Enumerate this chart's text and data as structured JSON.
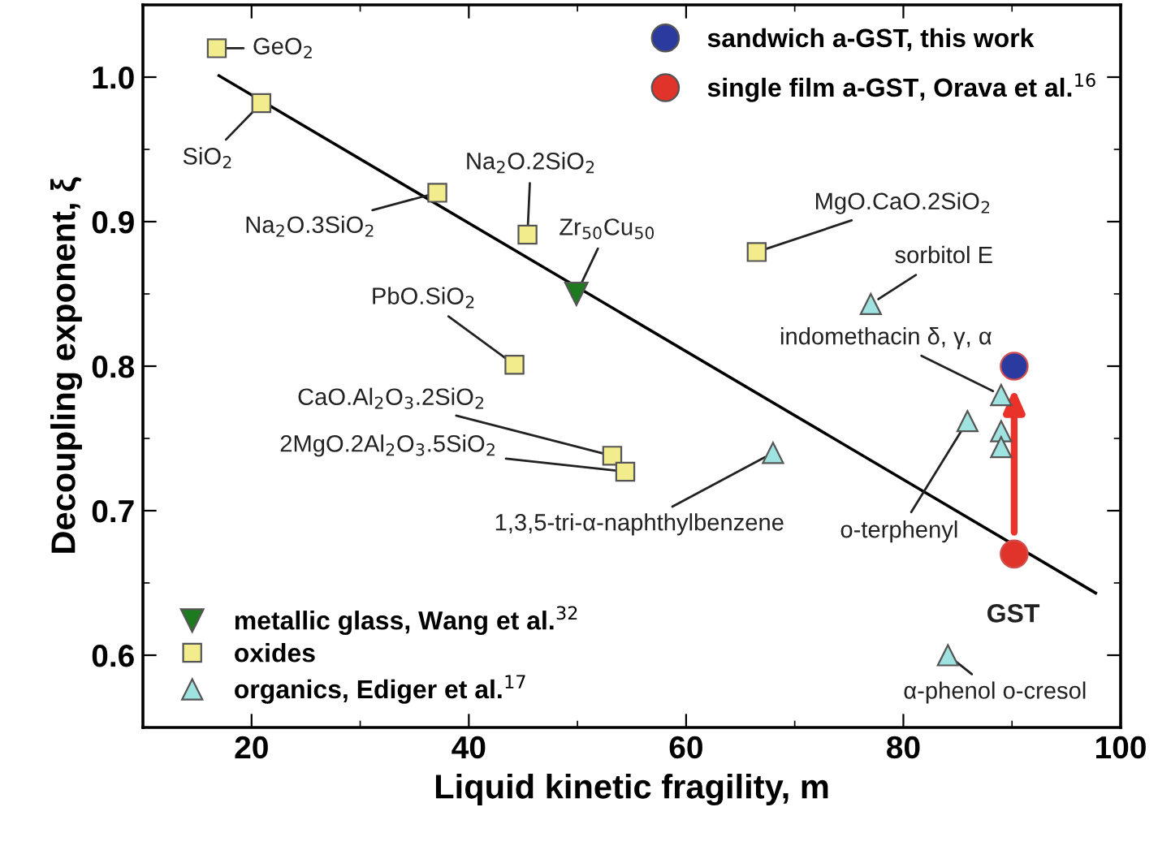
{
  "chart_data": {
    "type": "scatter",
    "xlabel": "Liquid kinetic fragility, m",
    "ylabel": "Decoupling exponent, ξ",
    "xlim": [
      10,
      100
    ],
    "ylim": [
      0.55,
      1.05
    ],
    "xticks": [
      20,
      40,
      60,
      80,
      100
    ],
    "yticks": [
      0.6,
      0.7,
      0.8,
      0.9,
      {
        "value": 1.0,
        "label": "1.0"
      }
    ],
    "grid": false,
    "legend": "top right",
    "series": [
      {
        "name": "sandwich a-GST, this work",
        "color": "#2b3a9e",
        "marker": "circle",
        "x": [
          90.2
        ],
        "values": [
          0.8
        ]
      },
      {
        "name": "single film a-GST, Orava et al.$^{16}$",
        "color": "#e0332a",
        "marker": "circle",
        "x": [
          90.2
        ],
        "values": [
          0.67
        ]
      },
      {
        "name": "metallic glass, Wang et al.$^{32}$",
        "color": "#1e7a1e",
        "marker": "triangle_down",
        "x": [
          49.9
        ],
        "values": [
          0.85
        ]
      },
      {
        "name": "oxides",
        "color": "#f2ec8c",
        "marker": "square",
        "x": [
          16.8,
          20.9,
          37.1,
          45.4,
          44.2,
          66.5,
          53.2,
          54.4
        ],
        "values": [
          1.02,
          0.982,
          0.92,
          0.891,
          0.801,
          0.879,
          0.738,
          0.727
        ]
      },
      {
        "name": "organics, Ediger et al.$^{17}$",
        "color": "#9fe3e0",
        "marker": "triangle",
        "x": [
          77,
          68,
          85.9,
          89,
          89,
          89,
          84.1
        ],
        "values": [
          0.843,
          0.74,
          0.762,
          0.78,
          0.755,
          0.744,
          0.6
        ]
      },
      {
        "type": "line",
        "color": "#000000",
        "marker": "none",
        "x": [
          17,
          97.7
        ],
        "values": [
          1.001,
          0.643
        ]
      }
    ],
    "annotations": [
      {
        "text": "GeO$_{2}$",
        "x": 16.8,
        "y": 1.02
      },
      {
        "text": "SiO$_{2}$",
        "x": 20.9,
        "y": 0.982
      },
      {
        "text": "Na$_{2}$O.3SiO$_{2}$",
        "x": 37.1,
        "y": 0.92
      },
      {
        "text": "Na$_{2}$O.2SiO$_{2}$",
        "x": 45.4,
        "y": 0.891
      },
      {
        "text": "Zr$_{50}$Cu$_{50}$",
        "x": 49.9,
        "y": 0.85
      },
      {
        "text": "PbO.SiO$_{2}$",
        "x": 44.2,
        "y": 0.801
      },
      {
        "text": "MgO.CaO.2SiO$_{2}$",
        "x": 66.5,
        "y": 0.879
      },
      {
        "text": "sorbitol E",
        "x": 77,
        "y": 0.843
      },
      {
        "text": "CaO.Al$_{2}$O$_{3}$.2SiO$_{2}$",
        "x": 53.2,
        "y": 0.738
      },
      {
        "text": "2MgO.2Al$_{2}$O$_{3}$.5SiO$_{2}$",
        "x": 54.4,
        "y": 0.727
      },
      {
        "text": "1,3,5-tri-α-naphthylbenzene",
        "x": 68,
        "y": 0.74
      },
      {
        "text": "o-terphenyl",
        "x": 85.9,
        "y": 0.762
      },
      {
        "text": "indomethacin δ, γ, α",
        "x": 89,
        "y": 0.78
      },
      {
        "text": "α-phenol o-cresol",
        "x": 84.1,
        "y": 0.6
      },
      "GST"
    ]
  }
}
